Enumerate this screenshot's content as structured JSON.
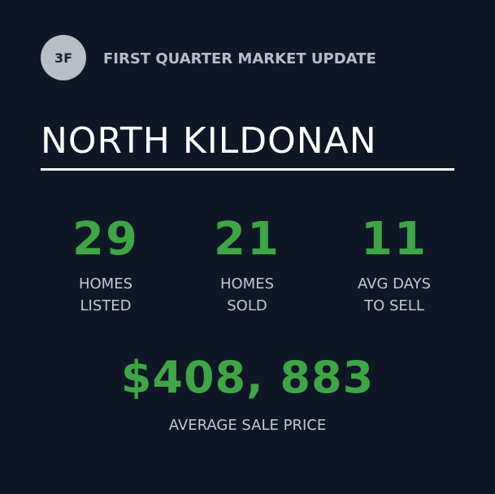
{
  "header": {
    "badge": "3F",
    "subtitle": "FIRST QUARTER MARKET UPDATE",
    "title": "NORTH KILDONAN"
  },
  "stats": [
    {
      "value": "29",
      "label_line1": "HOMES",
      "label_line2": "LISTED"
    },
    {
      "value": "21",
      "label_line1": "HOMES",
      "label_line2": "SOLD"
    },
    {
      "value": "11",
      "label_line1": "AVG DAYS",
      "label_line2": "TO SELL"
    }
  ],
  "price": {
    "value": "$408, 883",
    "label": "AVERAGE SALE PRICE"
  },
  "colors": {
    "background": "#0f1726",
    "accent_green": "#3ea645",
    "badge": "#b8bec6",
    "text_light": "#c3c8cf",
    "title_white": "#ffffff"
  }
}
